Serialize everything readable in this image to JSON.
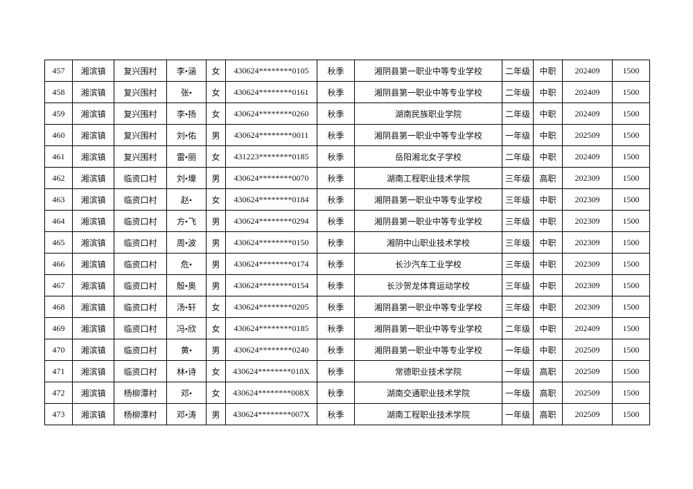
{
  "table": {
    "rows": [
      [
        "457",
        "湘滨镇",
        "复兴围村",
        "李•涵",
        "女",
        "430624********0105",
        "秋季",
        "湘阴县第一职业中等专业学校",
        "二年级",
        "中职",
        "202409",
        "1500"
      ],
      [
        "458",
        "湘滨镇",
        "复兴围村",
        "张•",
        "女",
        "430624********0161",
        "秋季",
        "湘阴县第一职业中等专业学校",
        "二年级",
        "中职",
        "202409",
        "1500"
      ],
      [
        "459",
        "湘滨镇",
        "复兴围村",
        "李•扬",
        "女",
        "430624********0260",
        "秋季",
        "湖南民族职业学院",
        "二年级",
        "中职",
        "202409",
        "1500"
      ],
      [
        "460",
        "湘滨镇",
        "复兴围村",
        "刘•佑",
        "男",
        "430624********0011",
        "秋季",
        "湘阴县第一职业中等专业学校",
        "一年级",
        "中职",
        "202509",
        "1500"
      ],
      [
        "461",
        "湘滨镇",
        "复兴围村",
        "雷•丽",
        "女",
        "431223********0185",
        "秋季",
        "岳阳湘北女子学校",
        "二年级",
        "中职",
        "202409",
        "1500"
      ],
      [
        "462",
        "湘滨镇",
        "临资口村",
        "刘•壕",
        "男",
        "430624********0070",
        "秋季",
        "湖南工程职业技术学院",
        "三年级",
        "高职",
        "202309",
        "1500"
      ],
      [
        "463",
        "湘滨镇",
        "临资口村",
        "赵•",
        "女",
        "430624********0184",
        "秋季",
        "湘阴县第一职业中等专业学校",
        "三年级",
        "中职",
        "202309",
        "1500"
      ],
      [
        "464",
        "湘滨镇",
        "临资口村",
        "方•飞",
        "男",
        "430624********0294",
        "秋季",
        "湘阴县第一职业中等专业学校",
        "三年级",
        "中职",
        "202309",
        "1500"
      ],
      [
        "465",
        "湘滨镇",
        "临资口村",
        "周•波",
        "男",
        "430624********0150",
        "秋季",
        "湘阴中山职业技术学校",
        "三年级",
        "中职",
        "202309",
        "1500"
      ],
      [
        "466",
        "湘滨镇",
        "临资口村",
        "危•",
        "男",
        "430624********0174",
        "秋季",
        "长沙汽车工业学校",
        "三年级",
        "中职",
        "202309",
        "1500"
      ],
      [
        "467",
        "湘滨镇",
        "临资口村",
        "殷•奥",
        "男",
        "430624********0154",
        "秋季",
        "长沙贺龙体育运动学校",
        "三年级",
        "中职",
        "202309",
        "1500"
      ],
      [
        "468",
        "湘滨镇",
        "临资口村",
        "汤•轩",
        "女",
        "430624********0205",
        "秋季",
        "湘阴县第一职业中等专业学校",
        "三年级",
        "中职",
        "202309",
        "1500"
      ],
      [
        "469",
        "湘滨镇",
        "临资口村",
        "冯•欣",
        "女",
        "430624********0185",
        "秋季",
        "湘阴县第一职业中等专业学校",
        "二年级",
        "中职",
        "202409",
        "1500"
      ],
      [
        "470",
        "湘滨镇",
        "临资口村",
        "黄•",
        "男",
        "430624********0240",
        "秋季",
        "湘阴县第一职业中等专业学校",
        "一年级",
        "中职",
        "202509",
        "1500"
      ],
      [
        "471",
        "湘滨镇",
        "临资口村",
        "林•诗",
        "女",
        "430624********018X",
        "秋季",
        "常德职业技术学院",
        "一年级",
        "高职",
        "202509",
        "1500"
      ],
      [
        "472",
        "湘滨镇",
        "杨柳潭村",
        "邓•",
        "女",
        "430624********008X",
        "秋季",
        "湖南交通职业技术学院",
        "一年级",
        "高职",
        "202509",
        "1500"
      ],
      [
        "473",
        "湘滨镇",
        "杨柳潭村",
        "邓•涛",
        "男",
        "430624********007X",
        "秋季",
        "湖南工程职业技术学院",
        "一年级",
        "高职",
        "202509",
        "1500"
      ]
    ]
  }
}
